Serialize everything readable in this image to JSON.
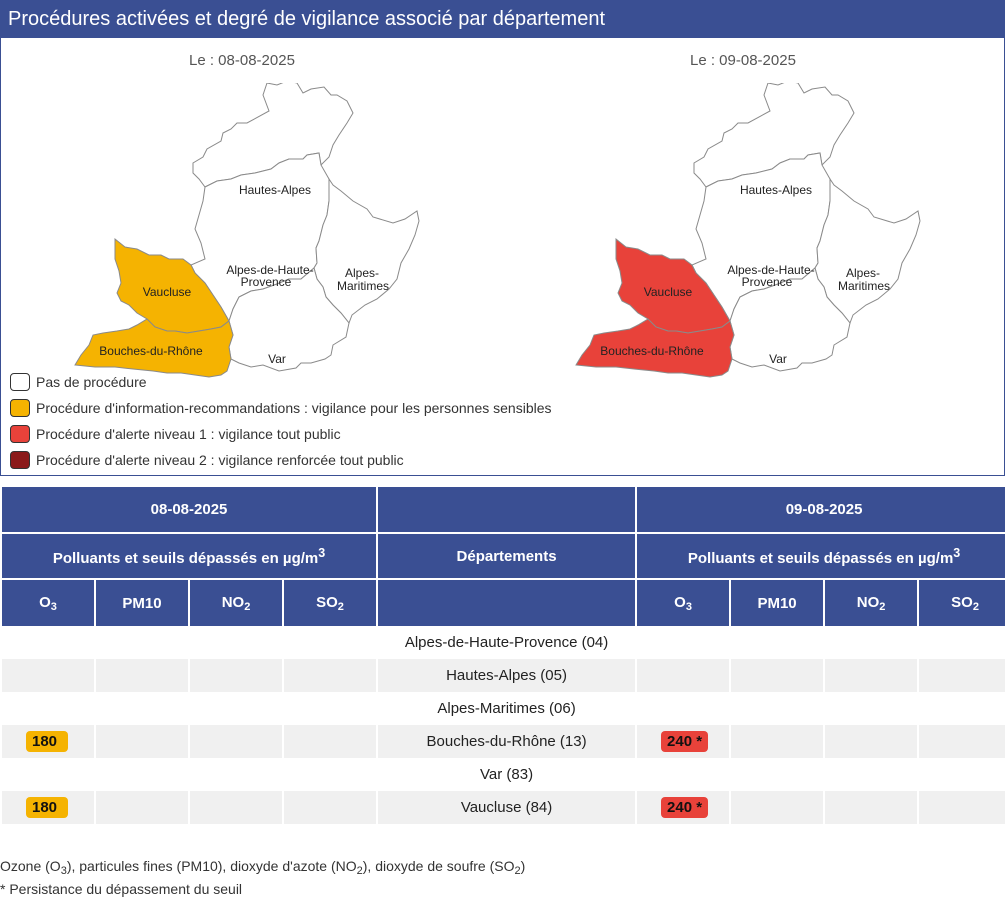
{
  "title": "Procédures activées et degré de vigilance associé par département",
  "maps": [
    {
      "date_label": "Le : 08-08-2025",
      "fills": {
        "hautes_alpes": "#ffffff",
        "ahp": "#ffffff",
        "alpes_maritimes": "#ffffff",
        "var": "#ffffff",
        "vaucluse": "#f5b301",
        "bdr": "#f5b301"
      }
    },
    {
      "date_label": "Le : 09-08-2025",
      "fills": {
        "hautes_alpes": "#ffffff",
        "ahp": "#ffffff",
        "alpes_maritimes": "#ffffff",
        "var": "#ffffff",
        "vaucluse": "#e8423a",
        "bdr": "#e8423a"
      }
    }
  ],
  "dept_labels": {
    "hautes_alpes": "Hautes-Alpes",
    "ahp_1": "Alpes-de-Haute-",
    "ahp_2": "Provence",
    "am_1": "Alpes-",
    "am_2": "Maritimes",
    "vaucluse": "Vaucluse",
    "bdr": "Bouches-du-Rhône",
    "var": "Var"
  },
  "legend": [
    {
      "label": "Pas de procédure",
      "color": "#ffffff"
    },
    {
      "label": "Procédure d'information-recommandations : vigilance pour les personnes sensibles",
      "color": "#f5b301"
    },
    {
      "label": "Procédure d'alerte niveau 1 : vigilance tout public",
      "color": "#e8423a"
    },
    {
      "label": "Procédure d'alerte niveau 2 : vigilance renforcée tout public",
      "color": "#8b1a1a"
    }
  ],
  "table": {
    "date1": "08-08-2025",
    "date2": "09-08-2025",
    "pollutants_header": "Polluants et seuils dépassés en µg/m",
    "pollutants_header_sup": "3",
    "departments_header": "Départements",
    "pollutants": [
      {
        "base": "O",
        "sub": "3"
      },
      {
        "base": "PM10",
        "sub": ""
      },
      {
        "base": "NO",
        "sub": "2"
      },
      {
        "base": "SO",
        "sub": "2"
      }
    ],
    "rows": [
      {
        "dept": "Alpes-de-Haute-Provence (04)",
        "d1": [
          "",
          "",
          "",
          ""
        ],
        "d2": [
          "",
          "",
          "",
          ""
        ]
      },
      {
        "dept": "Hautes-Alpes (05)",
        "d1": [
          "",
          "",
          "",
          ""
        ],
        "d2": [
          "",
          "",
          "",
          ""
        ]
      },
      {
        "dept": "Alpes-Maritimes (06)",
        "d1": [
          "",
          "",
          "",
          ""
        ],
        "d2": [
          "",
          "",
          "",
          ""
        ]
      },
      {
        "dept": "Bouches-du-Rhône (13)",
        "d1": [
          "180",
          "",
          "",
          ""
        ],
        "d2": [
          "240 *",
          "",
          "",
          ""
        ]
      },
      {
        "dept": "Var (83)",
        "d1": [
          "",
          "",
          "",
          ""
        ],
        "d2": [
          "",
          "",
          "",
          ""
        ]
      },
      {
        "dept": "Vaucluse (84)",
        "d1": [
          "180",
          "",
          "",
          ""
        ],
        "d2": [
          "240 *",
          "",
          "",
          ""
        ]
      }
    ],
    "level_colors": {
      "d1": "info",
      "d2": "alert1"
    }
  },
  "notes": {
    "line1_a": "Ozone (O",
    "line1_b": "3",
    "line1_c": "), particules fines (PM10), dioxyde d'azote (NO",
    "line1_d": "2",
    "line1_e": "), dioxyde de soufre (SO",
    "line1_f": "2",
    "line1_g": ")",
    "line2": "* Persistance du dépassement du seuil"
  }
}
